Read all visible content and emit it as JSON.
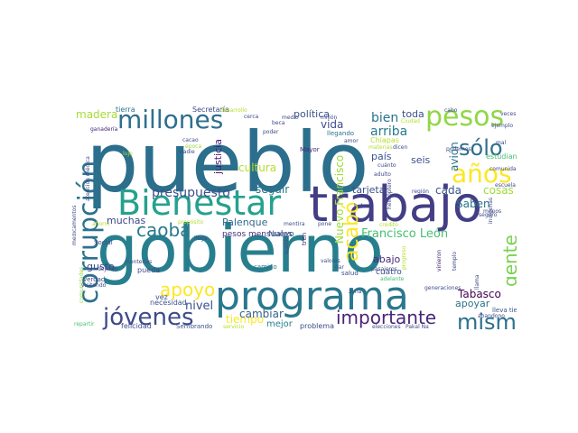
{
  "words": [
    {
      "text": "pueblo",
      "color": "#2b6f8d",
      "emphasis": 1.0
    },
    {
      "text": "gobierno",
      "color": "#277f8e",
      "emphasis": 0.95
    },
    {
      "text": "trabajo",
      "color": "#433e85",
      "emphasis": 0.7
    },
    {
      "text": "programa",
      "color": "#2a788e",
      "emphasis": 0.68
    },
    {
      "text": "Bienestar",
      "color": "#25a18e",
      "emphasis": 0.55
    },
    {
      "text": "corrupción",
      "color": "#2c718e",
      "emphasis": 0.5
    },
    {
      "text": "millones",
      "color": "#2e6f8e",
      "emphasis": 0.45
    },
    {
      "text": "pesos",
      "color": "#8fd744",
      "emphasis": 0.4
    },
    {
      "text": "jóvenes",
      "color": "#3e4a89",
      "emphasis": 0.35
    },
    {
      "text": "mismo",
      "color": "#2d708e",
      "emphasis": 0.32
    },
    {
      "text": "sólo",
      "color": "#2e6e8e",
      "emphasis": 0.28
    },
    {
      "text": "años",
      "color": "#fde725",
      "emphasis": 0.28
    },
    {
      "text": "importante",
      "color": "#482576",
      "emphasis": 0.26
    },
    {
      "text": "acabó",
      "color": "#fde725",
      "emphasis": 0.24
    },
    {
      "text": "caoba",
      "color": "#29798e",
      "emphasis": 0.22
    },
    {
      "text": "apoyo",
      "color": "#fde725",
      "emphasis": 0.22
    },
    {
      "text": "gente",
      "color": "#7ad151",
      "emphasis": 0.2
    },
    {
      "text": "presupuesto",
      "color": "#3b518b",
      "emphasis": 0.18
    },
    {
      "text": "Francisco León",
      "color": "#44bf70",
      "emphasis": 0.16
    },
    {
      "text": "bien",
      "color": "#2c728e",
      "emphasis": 0.17
    },
    {
      "text": "arriba",
      "color": "#297a8e",
      "emphasis": 0.15
    },
    {
      "text": "madera",
      "color": "#a8db34",
      "emphasis": 0.15
    },
    {
      "text": "muchas",
      "color": "#3f4788",
      "emphasis": 0.14
    },
    {
      "text": "nivel",
      "color": "#3b528b",
      "emphasis": 0.14
    },
    {
      "text": "Tabasco",
      "color": "#440154",
      "emphasis": 0.13
    },
    {
      "text": "vida",
      "color": "#3d4d8a",
      "emphasis": 0.13
    },
    {
      "text": "cultura",
      "color": "#b5de2b",
      "emphasis": 0.12
    },
    {
      "text": "Palenque",
      "color": "#31688e",
      "emphasis": 0.12
    },
    {
      "text": "política",
      "color": "#3b518b",
      "emphasis": 0.12
    },
    {
      "text": "Nuevo Francisco",
      "color": "#a0da39",
      "emphasis": 0.12
    },
    {
      "text": "seguir",
      "color": "#2a768e",
      "emphasis": 0.12
    },
    {
      "text": "justicia",
      "color": "#481d6f",
      "emphasis": 0.12
    },
    {
      "text": "tiempo",
      "color": "#fde725",
      "emphasis": 0.12
    },
    {
      "text": "cambiar",
      "color": "#33628d",
      "emphasis": 0.11
    },
    {
      "text": "Saben",
      "color": "#2b748e",
      "emphasis": 0.11
    },
    {
      "text": "cosas",
      "color": "#a0da39",
      "emphasis": 0.11
    },
    {
      "text": "cada",
      "color": "#3b518b",
      "emphasis": 0.11
    },
    {
      "text": "avión",
      "color": "#2b758e",
      "emphasis": 0.11
    },
    {
      "text": "abajo",
      "color": "#482878",
      "emphasis": 0.11
    },
    {
      "text": "apoyar",
      "color": "#2d708e",
      "emphasis": 0.1
    },
    {
      "text": "mejor",
      "color": "#26828e",
      "emphasis": 0.1
    },
    {
      "text": "seis",
      "color": "#3c4f8a",
      "emphasis": 0.1
    },
    {
      "text": "país",
      "color": "#3b528b",
      "emphasis": 0.1
    },
    {
      "text": "toda",
      "color": "#3c4f8a",
      "emphasis": 0.1
    },
    {
      "text": "tarjeta",
      "color": "#3b528b",
      "emphasis": 0.1
    },
    {
      "text": "gusto",
      "color": "#404688",
      "emphasis": 0.1
    },
    {
      "text": "pesos mensuales",
      "color": "#472f7d",
      "emphasis": 0.09
    },
    {
      "text": "Nuevo",
      "color": "#31688e",
      "emphasis": 0.09
    },
    {
      "text": "cuatro",
      "color": "#3c4f8a",
      "emphasis": 0.09
    },
    {
      "text": "lleva tiempo",
      "color": "#3b528b",
      "emphasis": 0.08
    },
    {
      "text": "llegando",
      "color": "#2c728e",
      "emphasis": 0.07
    },
    {
      "text": "Secretaría",
      "color": "#3e4a89",
      "emphasis": 0.07
    },
    {
      "text": "tierra",
      "color": "#2a768e",
      "emphasis": 0.07
    },
    {
      "text": "Chiapas",
      "color": "#b5de2b",
      "emphasis": 0.07
    },
    {
      "text": "estudiantes",
      "color": "#44bf70",
      "emphasis": 0.06
    },
    {
      "text": "comunidades",
      "color": "#8fd744",
      "emphasis": 0.06
    },
    {
      "text": "felicidad",
      "color": "#3e4a89",
      "emphasis": 0.06
    },
    {
      "text": "necesidad",
      "color": "#3b528b",
      "emphasis": 0.06
    },
    {
      "text": "problema",
      "color": "#3e4a89",
      "emphasis": 0.06
    },
    {
      "text": "Sembrando",
      "color": "#3b528b",
      "emphasis": 0.06
    },
    {
      "text": "vez",
      "color": "#3b528b",
      "emphasis": 0.06
    },
    {
      "text": "pueda",
      "color": "#3e4a89",
      "emphasis": 0.06
    },
    {
      "text": "camino",
      "color": "#2a768e",
      "emphasis": 0.06
    },
    {
      "text": "Mayor",
      "color": "#482576",
      "emphasis": 0.06
    },
    {
      "text": "verdad",
      "color": "#3e4a89",
      "emphasis": 0.06
    },
    {
      "text": "visitando",
      "color": "#3e4a89",
      "emphasis": 0.05
    },
    {
      "text": "Social",
      "color": "#3e4a89",
      "emphasis": 0.05
    },
    {
      "text": "ahorro",
      "color": "#b5de2b",
      "emphasis": 0.05
    },
    {
      "text": "dejaron",
      "color": "#3e4a89",
      "emphasis": 0.05
    },
    {
      "text": "repartir",
      "color": "#44bf70",
      "emphasis": 0.05
    },
    {
      "text": "medicamentos",
      "color": "#3e4a89",
      "emphasis": 0.05
    },
    {
      "text": "atención médica",
      "color": "#3e4a89",
      "emphasis": 0.05
    },
    {
      "text": "ganadería",
      "color": "#482576",
      "emphasis": 0.05
    },
    {
      "text": "cacao",
      "color": "#3e4a89",
      "emphasis": 0.05
    },
    {
      "text": "época",
      "color": "#a0da39",
      "emphasis": 0.05
    },
    {
      "text": "nadie",
      "color": "#3e4a89",
      "emphasis": 0.05
    },
    {
      "text": "propósito",
      "color": "#b5de2b",
      "emphasis": 0.05
    },
    {
      "text": "llega",
      "color": "#3e4a89",
      "emphasis": 0.05
    },
    {
      "text": "mentira",
      "color": "#3e4a89",
      "emphasis": 0.05
    },
    {
      "text": "sueldo",
      "color": "#3e4a89",
      "emphasis": 0.05
    },
    {
      "text": "tren",
      "color": "#482576",
      "emphasis": 0.05
    },
    {
      "text": "dar",
      "color": "#3e4a89",
      "emphasis": 0.05
    },
    {
      "text": "salud",
      "color": "#3e4a89",
      "emphasis": 0.05
    },
    {
      "text": "pasajeros",
      "color": "#3e4a89",
      "emphasis": 0.05
    },
    {
      "text": "crédito",
      "color": "#b5de2b",
      "emphasis": 0.05
    },
    {
      "text": "zona",
      "color": "#3e4a89",
      "emphasis": 0.05
    },
    {
      "text": "adelante",
      "color": "#44bf70",
      "emphasis": 0.05
    },
    {
      "text": "generaciones",
      "color": "#3e4a89",
      "emphasis": 0.05
    },
    {
      "text": "abandono",
      "color": "#3e4a89",
      "emphasis": 0.05
    },
    {
      "text": "llama",
      "color": "#3e4a89",
      "emphasis": 0.05
    },
    {
      "text": "templo",
      "color": "#3e4a89",
      "emphasis": 0.05
    },
    {
      "text": "vinieron",
      "color": "#482576",
      "emphasis": 0.05
    },
    {
      "text": "progreso",
      "color": "#b5de2b",
      "emphasis": 0.05
    },
    {
      "text": "menos",
      "color": "#3e4a89",
      "emphasis": 0.05
    },
    {
      "text": "seguro",
      "color": "#3e4a89",
      "emphasis": 0.05
    },
    {
      "text": "indígenas",
      "color": "#3e4a89",
      "emphasis": 0.05
    },
    {
      "text": "región",
      "color": "#3e4a89",
      "emphasis": 0.05
    },
    {
      "text": "helicóptero",
      "color": "#3e4a89",
      "emphasis": 0.05
    },
    {
      "text": "escuela",
      "color": "#3e4a89",
      "emphasis": 0.05
    },
    {
      "text": "comunidad",
      "color": "#3e4a89",
      "emphasis": 0.05
    },
    {
      "text": "ejemplo",
      "color": "#3e4a89",
      "emphasis": 0.05
    },
    {
      "text": "podemos",
      "color": "#3e4a89",
      "emphasis": 0.05
    },
    {
      "text": "cuánto",
      "color": "#3e4a89",
      "emphasis": 0.05
    },
    {
      "text": "adulto",
      "color": "#3e4a89",
      "emphasis": 0.05
    },
    {
      "text": "Ciudad",
      "color": "#b5de2b",
      "emphasis": 0.05
    },
    {
      "text": "amor",
      "color": "#3e4a89",
      "emphasis": 0.05
    },
    {
      "text": "poder",
      "color": "#3e4a89",
      "emphasis": 0.05
    },
    {
      "text": "millón",
      "color": "#3e4a89",
      "emphasis": 0.05
    },
    {
      "text": "beca",
      "color": "#3e4a89",
      "emphasis": 0.05
    },
    {
      "text": "elecciones",
      "color": "#3e4a89",
      "emphasis": 0.05
    },
    {
      "text": "Pakal Na",
      "color": "#3e4a89",
      "emphasis": 0.05
    },
    {
      "text": "valores",
      "color": "#3e4a89",
      "emphasis": 0.05
    },
    {
      "text": "monterías",
      "color": "#3e4a89",
      "emphasis": 0.05
    },
    {
      "text": "hule",
      "color": "#3e4a89",
      "emphasis": 0.05
    },
    {
      "text": "medio",
      "color": "#3e4a89",
      "emphasis": 0.05
    },
    {
      "text": "cabo",
      "color": "#3e4a89",
      "emphasis": 0.05
    },
    {
      "text": "veces",
      "color": "#3e4a89",
      "emphasis": 0.05
    },
    {
      "text": "desarrollo",
      "color": "#b5de2b",
      "emphasis": 0.05
    },
    {
      "text": "dicen",
      "color": "#3e4a89",
      "emphasis": 0.05
    },
    {
      "text": "materias",
      "color": "#b5de2b",
      "emphasis": 0.05
    },
    {
      "text": "mal",
      "color": "#3e4a89",
      "emphasis": 0.05
    },
    {
      "text": "lujo",
      "color": "#b5de2b",
      "emphasis": 0.05
    },
    {
      "text": "servicio",
      "color": "#b5de2b",
      "emphasis": 0.05
    },
    {
      "text": "pone",
      "color": "#3e4a89",
      "emphasis": 0.05
    },
    {
      "text": "cerca",
      "color": "#3e4a89",
      "emphasis": 0.05
    }
  ]
}
